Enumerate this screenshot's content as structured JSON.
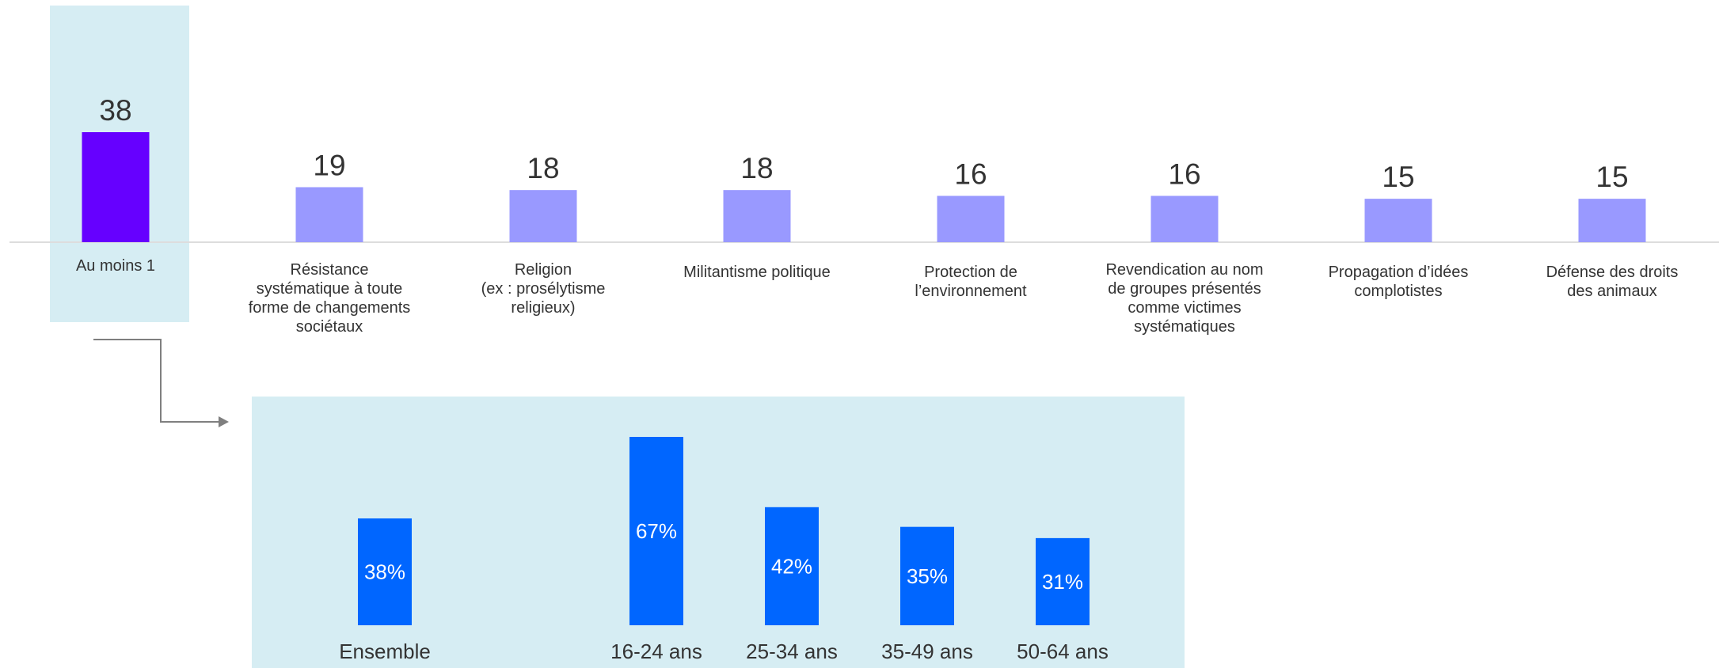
{
  "colors": {
    "highlight_panel": "#d6edf3",
    "top_highlight_bar": "#6600ff",
    "top_bars": "#9999ff",
    "bottom_bars": "#0066ff",
    "baseline": "#dddddd",
    "connector": "#7f7f7f"
  },
  "chart_data": [
    {
      "type": "bar",
      "categories": [
        [
          "Au moins 1"
        ],
        [
          "Résistance",
          "systématique à toute",
          "forme de changements",
          "sociétaux"
        ],
        [
          "Religion",
          "(ex : prosélytisme",
          "religieux)"
        ],
        [
          "Militantisme politique"
        ],
        [
          "Protection de",
          "l’environnement"
        ],
        [
          "Revendication au nom",
          "de groupes présentés",
          "comme victimes",
          "systématiques"
        ],
        [
          "Propagation d’idées",
          "complotistes"
        ],
        [
          "Défense des droits",
          "des animaux"
        ]
      ],
      "values": [
        38,
        19,
        18,
        18,
        16,
        16,
        15,
        15
      ],
      "value_labels": [
        "38",
        "19",
        "18",
        "18",
        "16",
        "16",
        "15",
        "15"
      ],
      "highlighted_index": 0,
      "ylim": [
        0,
        40
      ]
    },
    {
      "type": "bar",
      "categories": [
        "Ensemble",
        "16-24 ans",
        "25-34 ans",
        "35-49 ans",
        "50-64 ans"
      ],
      "values": [
        38,
        67,
        42,
        35,
        31
      ],
      "value_labels": [
        "38%",
        "67%",
        "42%",
        "35%",
        "31%"
      ],
      "ylim": [
        0,
        70
      ]
    }
  ]
}
